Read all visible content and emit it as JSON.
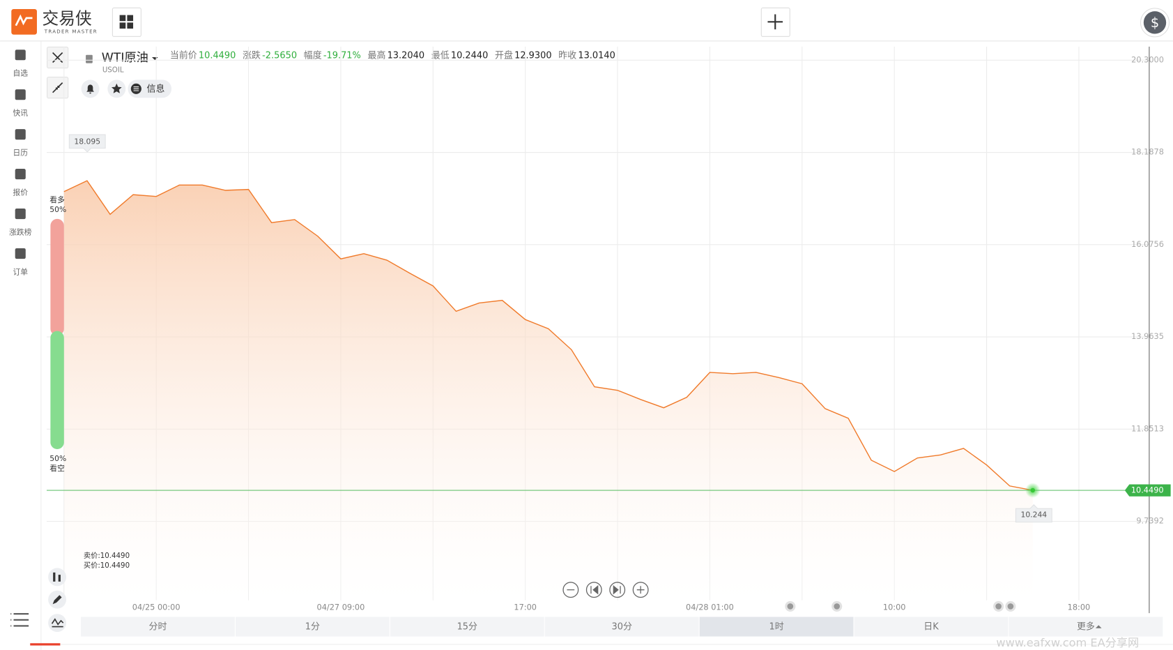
{
  "app": {
    "logo": "交易侠",
    "logo_sub": "TRADER MASTER",
    "account_icon": "$",
    "nav": [
      "自选",
      "快讯",
      "日历",
      "报价",
      "涨跌榜",
      "订单"
    ]
  },
  "symbol": {
    "name": "WTI原油",
    "code": "USOIL",
    "info": "信息",
    "stats": [
      {
        "label": "当前价",
        "value": "10.4490"
      },
      {
        "label": "涨跌",
        "value": "-2.5650"
      },
      {
        "label": "幅度",
        "value": "-19.71%"
      },
      {
        "label": "最高",
        "value": "13.2040"
      },
      {
        "label": "最低",
        "value": "10.2440"
      },
      {
        "label": "开盘",
        "value": "12.9300"
      },
      {
        "label": "昨收",
        "value": "13.0140"
      }
    ]
  },
  "sentiment": {
    "bull_label": "看多",
    "bull": "50%",
    "bear": "50%",
    "bear_label": "看空"
  },
  "quotes": [
    "卖价:10.4490",
    "买价:10.4490"
  ],
  "timeframes": [
    "分时",
    "1分",
    "15分",
    "30分",
    "1时",
    "日K",
    "更多"
  ],
  "watermark": "www.eafxw.com  EA分享网",
  "chart_data": {
    "type": "area",
    "color": "#f07a2a",
    "categories": [
      null,
      null,
      null,
      null,
      "04/25 00:00",
      null,
      null,
      null,
      null,
      null,
      null,
      null,
      "04/27 09:00",
      null,
      null,
      null,
      null,
      null,
      null,
      null,
      "17:00",
      null,
      null,
      null,
      null,
      null,
      null,
      null,
      "04/28 01:00",
      null,
      null,
      null,
      null,
      null,
      null,
      null,
      "10:00",
      null,
      null,
      null,
      null,
      null,
      null,
      null,
      "18:00",
      null,
      null
    ],
    "values": [
      17.29,
      17.54,
      16.77,
      17.22,
      17.18,
      17.44,
      17.44,
      17.32,
      17.34,
      16.58,
      16.65,
      16.27,
      15.75,
      15.87,
      15.72,
      15.42,
      15.13,
      14.55,
      14.74,
      14.8,
      14.36,
      14.15,
      13.67,
      12.82,
      12.74,
      12.53,
      12.34,
      12.58,
      13.15,
      13.12,
      13.15,
      13.03,
      12.89,
      12.32,
      12.1,
      11.14,
      10.88,
      11.19,
      11.26,
      11.41,
      11.03,
      10.55,
      10.45,
      null,
      null,
      null,
      null
    ],
    "ylim": [
      7.93,
      20.61
    ],
    "yticks": [
      {
        "value": 20.3,
        "label": "20.3000"
      },
      18.1878,
      16.0756,
      13.9635,
      11.8513,
      9.7392
    ],
    "grid": true,
    "max_marker": 18.095,
    "min_marker": 10.244,
    "current_price": {
      "value": 10.449,
      "label": "10.4490",
      "color": "#3cb34a"
    }
  }
}
